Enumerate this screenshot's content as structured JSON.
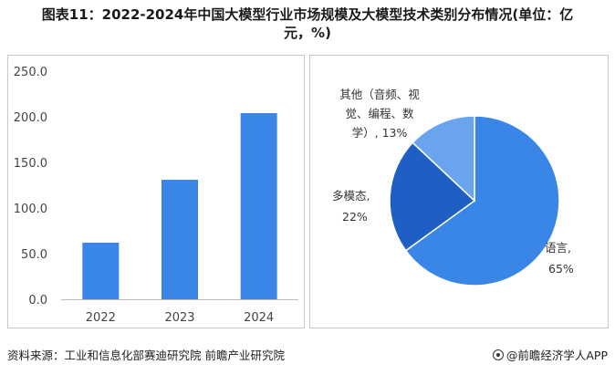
{
  "title": {
    "line1": "图表11：2022-2024年中国大模型行业市场规模及大模型技术类别分布情况(单位：亿",
    "line2": "元，%)"
  },
  "footer": {
    "source": "资料来源：工业和信息化部赛迪研究院 前瞻产业研究院",
    "brand": "@前瞻经济学人APP"
  },
  "colors": {
    "bar": "#3a86e6",
    "pie_language": "#3a86e6",
    "pie_multimodal": "#1f5fc4",
    "pie_other": "#6aa3ee"
  },
  "chart_data": [
    {
      "type": "bar",
      "categories": [
        "2022",
        "2023",
        "2024"
      ],
      "values": [
        62,
        131,
        204
      ],
      "ylim": [
        0,
        250
      ],
      "yticks": [
        "0.0",
        "50.0",
        "100.0",
        "150.0",
        "200.0",
        "250.0"
      ],
      "title": "",
      "xlabel": "",
      "ylabel": "",
      "grid": false
    },
    {
      "type": "pie",
      "slices": [
        {
          "label": "语言,",
          "pct_text": "65%",
          "value": 65
        },
        {
          "label": "多模态,",
          "pct_text": "22%",
          "value": 22
        },
        {
          "label": "其他（音频、视觉、编程、数学）, 13%",
          "value": 13
        }
      ],
      "other_label_lines": [
        "其他（音频、视",
        "觉、编程、数",
        "学）, 13%"
      ]
    }
  ]
}
